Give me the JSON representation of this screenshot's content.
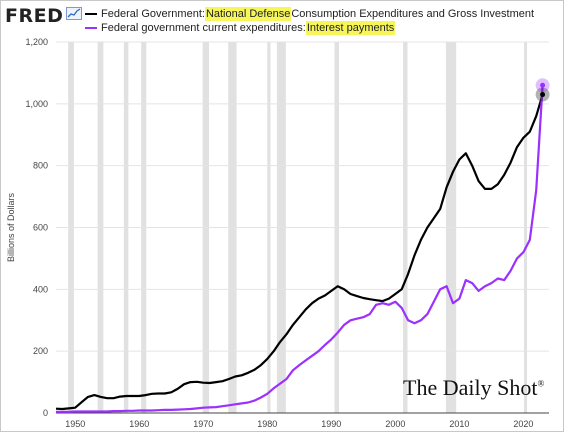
{
  "logo": {
    "text": "FRED",
    "icon": "chart-line-icon"
  },
  "legend": [
    {
      "prefix": "Federal Government: ",
      "highlight": "National Defense",
      "suffix": " Consumption Expenditures and Gross Investment",
      "color": "#000000"
    },
    {
      "prefix": "Federal government current expenditures: ",
      "highlight": "Interest payments",
      "suffix": "",
      "color": "#9b30ff"
    }
  ],
  "highlight_color": "#f6f65a",
  "watermark": {
    "text": "The Daily Shot",
    "mark": "®"
  },
  "chart_data": {
    "type": "line",
    "ylabel": "Billions of Dollars",
    "xlim": [
      1947,
      2024
    ],
    "ylim": [
      0,
      1200
    ],
    "yticks": [
      0,
      200,
      400,
      600,
      800,
      1000,
      1200
    ],
    "ytick_labels": [
      "0",
      "200",
      "400",
      "600",
      "800",
      "1,000",
      "1,200"
    ],
    "xticks": [
      1950,
      1960,
      1970,
      1980,
      1990,
      2000,
      2010,
      2020
    ],
    "grid": true,
    "recessions": [
      [
        1948.9,
        1949.8
      ],
      [
        1953.5,
        1954.4
      ],
      [
        1957.6,
        1958.3
      ],
      [
        1960.3,
        1961.1
      ],
      [
        1969.9,
        1970.9
      ],
      [
        1973.9,
        1975.2
      ],
      [
        1980.0,
        1980.5
      ],
      [
        1981.5,
        1982.9
      ],
      [
        1990.5,
        1991.2
      ],
      [
        2001.2,
        2001.9
      ],
      [
        2007.9,
        2009.5
      ],
      [
        2020.1,
        2020.4
      ]
    ],
    "series": [
      {
        "name": "Federal Government: National Defense Consumption Expenditures and Gross Investment",
        "color": "#000000",
        "x": [
          1947,
          1948,
          1949,
          1950,
          1951,
          1952,
          1953,
          1954,
          1955,
          1956,
          1957,
          1958,
          1959,
          1960,
          1961,
          1962,
          1963,
          1964,
          1965,
          1966,
          1967,
          1968,
          1969,
          1970,
          1971,
          1972,
          1973,
          1974,
          1975,
          1976,
          1977,
          1978,
          1979,
          1980,
          1981,
          1982,
          1983,
          1984,
          1985,
          1986,
          1987,
          1988,
          1989,
          1990,
          1991,
          1992,
          1993,
          1994,
          1995,
          1996,
          1997,
          1998,
          1999,
          2000,
          2001,
          2002,
          2003,
          2004,
          2005,
          2006,
          2007,
          2008,
          2009,
          2010,
          2011,
          2012,
          2013,
          2014,
          2015,
          2016,
          2017,
          2018,
          2019,
          2020,
          2021,
          2022,
          2023
        ],
        "values": [
          14,
          13,
          15,
          17,
          35,
          52,
          58,
          52,
          48,
          48,
          53,
          55,
          55,
          55,
          58,
          62,
          63,
          63,
          67,
          78,
          93,
          100,
          101,
          98,
          97,
          100,
          103,
          110,
          118,
          122,
          130,
          140,
          155,
          175,
          200,
          230,
          255,
          285,
          310,
          335,
          355,
          370,
          380,
          395,
          410,
          400,
          385,
          378,
          372,
          368,
          365,
          362,
          370,
          385,
          400,
          450,
          510,
          560,
          600,
          630,
          660,
          730,
          780,
          820,
          840,
          800,
          750,
          725,
          725,
          740,
          770,
          810,
          860,
          890,
          910,
          960,
          1030
        ]
      },
      {
        "name": "Federal government current expenditures: Interest payments",
        "color": "#9b30ff",
        "x": [
          1947,
          1948,
          1949,
          1950,
          1951,
          1952,
          1953,
          1954,
          1955,
          1956,
          1957,
          1958,
          1959,
          1960,
          1961,
          1962,
          1963,
          1964,
          1965,
          1966,
          1967,
          1968,
          1969,
          1970,
          1971,
          1972,
          1973,
          1974,
          1975,
          1976,
          1977,
          1978,
          1979,
          1980,
          1981,
          1982,
          1983,
          1984,
          1985,
          1986,
          1987,
          1988,
          1989,
          1990,
          1991,
          1992,
          1993,
          1994,
          1995,
          1996,
          1997,
          1998,
          1999,
          2000,
          2001,
          2002,
          2003,
          2004,
          2005,
          2006,
          2007,
          2008,
          2009,
          2010,
          2011,
          2012,
          2013,
          2014,
          2015,
          2016,
          2017,
          2018,
          2019,
          2020,
          2021,
          2022,
          2023
        ],
        "values": [
          4,
          4,
          4,
          5,
          5,
          5,
          5,
          5,
          5,
          6,
          6,
          7,
          7,
          8,
          8,
          8,
          9,
          10,
          10,
          11,
          12,
          13,
          15,
          17,
          18,
          19,
          22,
          25,
          28,
          31,
          34,
          40,
          50,
          62,
          80,
          95,
          110,
          138,
          155,
          170,
          185,
          200,
          220,
          238,
          260,
          285,
          300,
          305,
          310,
          320,
          350,
          355,
          350,
          360,
          340,
          300,
          290,
          300,
          320,
          360,
          400,
          410,
          355,
          370,
          430,
          420,
          395,
          410,
          420,
          435,
          430,
          460,
          500,
          520,
          560,
          720,
          1060
        ]
      }
    ]
  }
}
